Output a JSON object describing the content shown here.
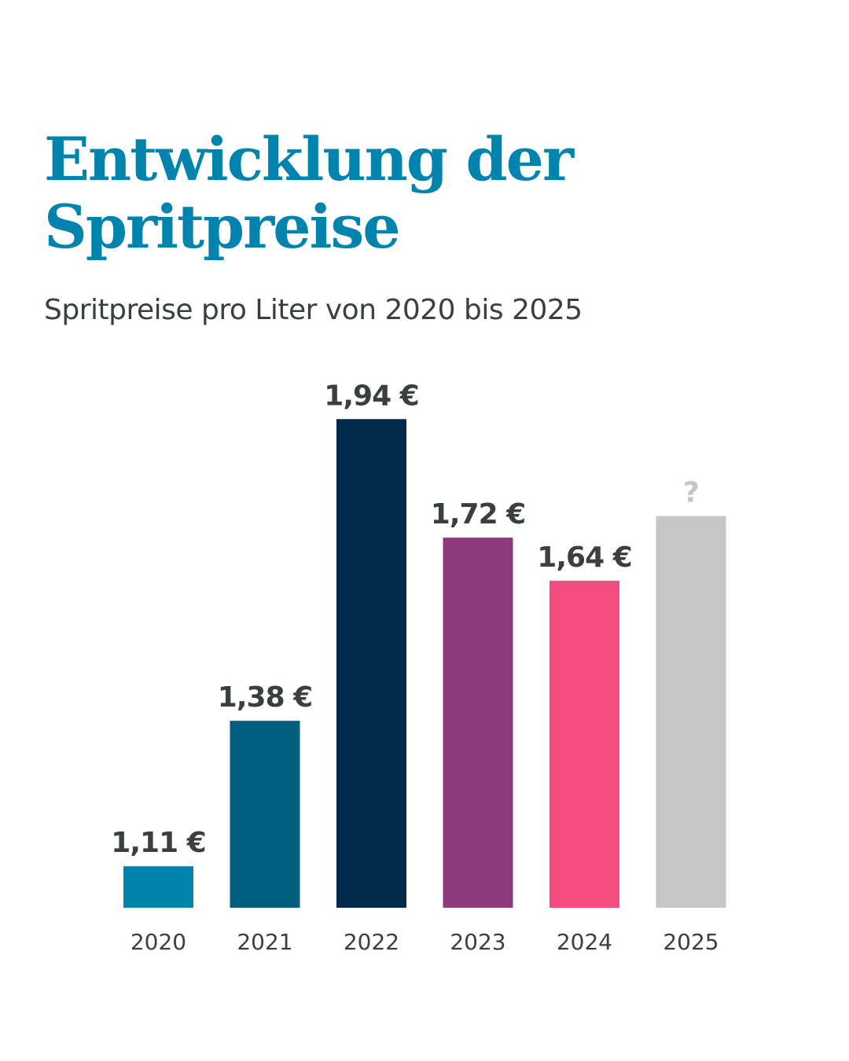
{
  "chart_data": {
    "type": "bar",
    "title": "Entwicklung der Spritpreise",
    "subtitle": "Spritpreise pro Liter von 2020 bis 2025",
    "xlabel": "",
    "ylabel": "",
    "ylim": [
      1.033,
      2.0
    ],
    "grid": false,
    "categories": [
      "2020",
      "2021",
      "2022",
      "2023",
      "2024",
      "2025"
    ],
    "values": [
      1.11,
      1.38,
      1.94,
      1.72,
      1.64,
      1.76
    ],
    "data_labels": [
      "1,11 €",
      "1,38 €",
      "1,94 €",
      "1,72 €",
      "1,64 €",
      "?"
    ],
    "colors": [
      "#0083ad",
      "#005e7f",
      "#03294a",
      "#8e3a7c",
      "#f24d7e",
      "#c5c6c5"
    ],
    "label_colors": [
      "#3a4040",
      "#3a4040",
      "#3a4040",
      "#3a4040",
      "#3a4040",
      "#c5c6c5"
    ]
  }
}
